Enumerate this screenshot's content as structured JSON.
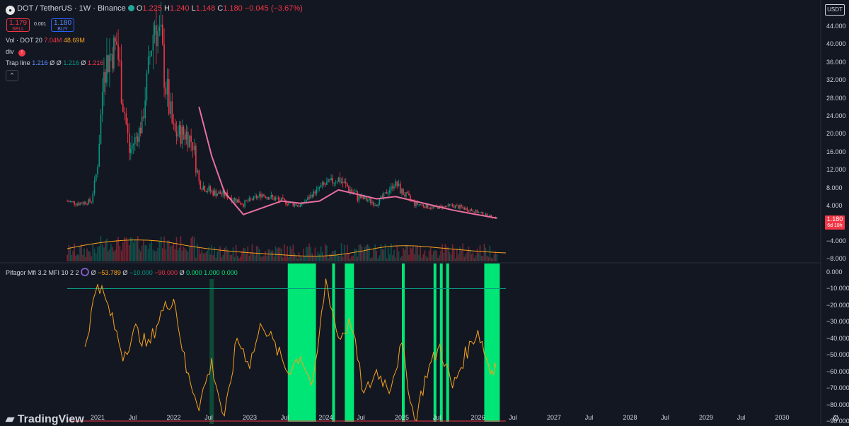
{
  "header": {
    "symbol_icon": "polkadot-logo-icon",
    "title": "DOT / TetherUS · 1W · Binance",
    "ohlc": {
      "o_label": "O",
      "o": "1.225",
      "h_label": "H",
      "h": "1.240",
      "l_label": "L",
      "l": "1.148",
      "c_label": "C",
      "c": "1.180",
      "change": "−0.045 (−3.67%)"
    },
    "sell_price": "1.179",
    "sell_label": "SELL",
    "spread": "0.001",
    "buy_price": "1.180",
    "buy_label": "BUY"
  },
  "indicators": {
    "vol_label": "Vol · DOT 20",
    "vol_a": "7.04M",
    "vol_b": "48.69M",
    "div_label": "div",
    "div_alert": "!",
    "trap_label": "Trap line",
    "trap_a": "1.216",
    "trap_sym1": "Ø",
    "trap_sym2": "Ø",
    "trap_b": "1.216",
    "trap_sym3": "Ø",
    "trap_c": "1.216",
    "mfi_label": "Pifagor Mfi 3.2 MFI 10 2 2",
    "mfi_sym": "Ø",
    "mfi_v1": "−53.789",
    "mfi_sym2": "Ø",
    "mfi_v2": "−10.000",
    "mfi_v3": "−90.000",
    "mfi_sym3": "Ø",
    "mfi_v4": "0.000",
    "mfi_v5": "1.000",
    "mfi_v6": "0.000"
  },
  "axes": {
    "currency": "USDT",
    "price_ticks": [
      "44.000",
      "40.000",
      "36.000",
      "32.000",
      "28.000",
      "24.000",
      "20.000",
      "16.000",
      "12.000",
      "8.000",
      "4.000",
      "−4.000",
      "−8.000"
    ],
    "mfi_ticks": [
      "0.000",
      "−10.000",
      "−20.000",
      "−30.000",
      "−40.000",
      "−50.000",
      "−60.000",
      "−70.000",
      "−80.000",
      "−90.000"
    ],
    "time_ticks": [
      "2021",
      "Jul",
      "2022",
      "Jul",
      "2023",
      "Jul",
      "2024",
      "Jul",
      "2025",
      "Jul",
      "2026",
      "Jul",
      "2027",
      "Jul",
      "2028",
      "Jul",
      "2029",
      "Jul",
      "2030"
    ],
    "last_price": "1.180",
    "countdown": "6d 18h"
  },
  "footer": {
    "brand": "TradingView",
    "settings_icon": "gear-icon"
  },
  "colors": {
    "background": "#131722",
    "up": "#089981",
    "down": "#f23645",
    "ma": "#e86fa0",
    "mfi_highlight": "#00e676",
    "mfi_line": "#f7a21b"
  },
  "chart_data": [
    {
      "type": "candlestick",
      "title": "DOT / TetherUS · 1W · Binance",
      "x_range": [
        "2020-08",
        "2030-06"
      ],
      "ylim": [
        0,
        46
      ],
      "approx_weekly_close": {
        "x": [
          "2020-08",
          "2020-10",
          "2020-12",
          "2021-01",
          "2021-02",
          "2021-04",
          "2021-05",
          "2021-06",
          "2021-08",
          "2021-09",
          "2021-10",
          "2021-11",
          "2021-12",
          "2022-01",
          "2022-03",
          "2022-04",
          "2022-05",
          "2022-07",
          "2022-09",
          "2022-12",
          "2023-03",
          "2023-06",
          "2023-09",
          "2023-12",
          "2024-03",
          "2024-06",
          "2024-09",
          "2024-12",
          "2025-01",
          "2025-03",
          "2025-06",
          "2025-09",
          "2025-12",
          "2026-02",
          "2026-04"
        ],
        "y": [
          5,
          4.5,
          5,
          13,
          35,
          40,
          28,
          16,
          22,
          35,
          45,
          40,
          28,
          20,
          20,
          18,
          9,
          7,
          6.5,
          4.5,
          6.5,
          5,
          4,
          8,
          10,
          6,
          4.5,
          9,
          7,
          4.5,
          3.5,
          4,
          3,
          2,
          1.2
        ]
      },
      "ma_series": {
        "x": [
          "2022-05",
          "2022-07",
          "2022-09",
          "2022-12",
          "2023-03",
          "2023-06",
          "2023-09",
          "2023-12",
          "2024-03",
          "2024-06",
          "2024-09",
          "2024-12",
          "2025-03",
          "2025-06",
          "2025-09",
          "2025-12",
          "2026-04"
        ],
        "y": [
          26,
          15,
          7,
          2,
          3.5,
          5,
          4.5,
          5,
          7.5,
          6.5,
          5.5,
          6,
          5,
          4,
          3,
          2.2,
          1.2
        ]
      }
    },
    {
      "type": "bar",
      "title": "Vol · DOT 20",
      "note": "weekly volume with moving average overlay"
    },
    {
      "type": "line",
      "title": "Pifagor Mfi 3.2 MFI 10 2 2",
      "ylim": [
        -95,
        5
      ],
      "levels": [
        -10,
        -90
      ],
      "highlight_zones": [
        [
          "2023-07",
          "2023-11"
        ],
        [
          "2024-02",
          "2024-02"
        ],
        [
          "2024-04",
          "2024-05"
        ],
        [
          "2025-01",
          "2025-01"
        ],
        [
          "2025-06",
          "2025-06"
        ],
        [
          "2025-07",
          "2025-07"
        ],
        [
          "2025-08",
          "2025-08"
        ],
        [
          "2026-02",
          "2026-04"
        ]
      ],
      "approx_values": {
        "x": [
          "2020-11",
          "2021-01",
          "2021-03",
          "2021-05",
          "2021-07",
          "2021-09",
          "2021-11",
          "2022-01",
          "2022-03",
          "2022-05",
          "2022-07",
          "2022-09",
          "2022-11",
          "2023-01",
          "2023-03",
          "2023-05",
          "2023-07",
          "2023-09",
          "2023-11",
          "2024-01",
          "2024-03",
          "2024-05",
          "2024-07",
          "2024-09",
          "2024-11",
          "2025-01",
          "2025-03",
          "2025-05",
          "2025-07",
          "2025-09",
          "2025-11",
          "2026-01",
          "2026-03",
          "2026-04"
        ],
        "y": [
          -45,
          -5,
          -25,
          -50,
          -35,
          -45,
          -25,
          -15,
          -60,
          -80,
          -55,
          -90,
          -40,
          -55,
          -30,
          -45,
          -60,
          -50,
          -70,
          -5,
          -40,
          -30,
          -75,
          -60,
          -70,
          -45,
          -90,
          -60,
          -45,
          -70,
          -50,
          -35,
          -60,
          -54
        ]
      }
    }
  ]
}
